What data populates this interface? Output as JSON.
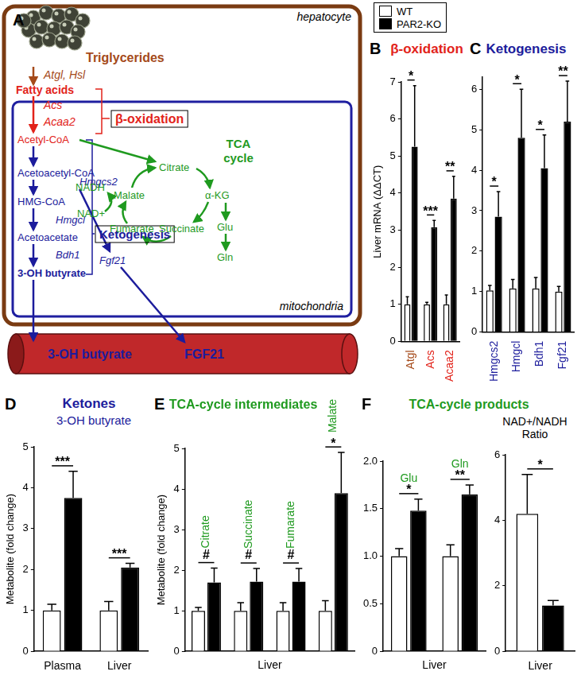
{
  "diagram": {
    "panel": "A",
    "texts": {
      "cell": "hepatocyte",
      "triglycerides": "Triglycerides",
      "lipases": "Atgl, Hsl",
      "fatty_acids": "Fatty acids",
      "acs": "Acs",
      "acaa2": "Acaa2",
      "beta_oxidation": "β-oxidation",
      "acetyl_coa": "Acetyl-CoA",
      "acetoacetyl_coa": "Acetoacetyl-CoA",
      "hmgcs2": "Hmgcs2",
      "hmg_coa": "HMG-CoA",
      "hmgcl": "Hmgcl",
      "acetoacetate": "Acetoacetate",
      "bdh1": "Bdh1",
      "butyrate": "3-OH butyrate",
      "ketogenesis": "Ketogenesis",
      "fgf21": "Fgf21",
      "organelle": "mitochondria",
      "tca": "TCA cycle",
      "citrate": "Citrate",
      "akg": "α-KG",
      "glu": "Glu",
      "gln": "Gln",
      "succinate": "Succinate",
      "fumarate": "Fumarate",
      "malate": "Malate",
      "nadh": "NADH",
      "nad": "NAD+",
      "blood_butyrate": "3-OH butyrate",
      "blood_fgf21": "FGF21"
    }
  },
  "chart_data": [
    {
      "panel": "B",
      "type": "bar",
      "title": "β-oxidation",
      "y_label": "Liver mRNA (ΔΔCT)",
      "categories": [
        "Atgl",
        "Acs",
        "Acaa2"
      ],
      "series": [
        {
          "name": "WT",
          "color": "#ffffff",
          "values": [
            1.0,
            1.0,
            1.0
          ],
          "errors": [
            0.2,
            0.05,
            0.25
          ]
        },
        {
          "name": "PAR2-KO",
          "color": "#000000",
          "values": [
            5.25,
            3.08,
            3.85
          ],
          "errors": [
            1.65,
            0.18,
            0.6
          ]
        }
      ],
      "significance": [
        "*",
        "***",
        "**"
      ],
      "ylim": [
        0,
        7
      ],
      "yticks": [
        0,
        1,
        2,
        3,
        4,
        5,
        6,
        7
      ],
      "grid": false,
      "legend": "top"
    },
    {
      "panel": "C",
      "type": "bar",
      "title": "Ketogenesis",
      "categories": [
        "Hmgcs2",
        "Hmgcl",
        "Bdh1",
        "Fgf21"
      ],
      "series": [
        {
          "name": "WT",
          "color": "#ffffff",
          "values": [
            1.03,
            1.08,
            1.08,
            1.0
          ],
          "errors": [
            0.12,
            0.22,
            0.27,
            0.13
          ]
        },
        {
          "name": "PAR2-KO",
          "color": "#000000",
          "values": [
            2.85,
            4.8,
            4.05,
            5.2
          ],
          "errors": [
            0.62,
            1.2,
            0.82,
            1.0
          ]
        }
      ],
      "significance": [
        "*",
        "*",
        "*",
        "**"
      ],
      "ylim": [
        0,
        6.3
      ],
      "yticks": [
        0,
        1,
        2,
        3,
        4,
        5,
        6
      ],
      "grid": false
    },
    {
      "panel": "D",
      "type": "bar",
      "title": "Ketones",
      "subtitle": "3-OH butyrate",
      "y_label": "Metabolite (fold change)",
      "categories": [
        "Plasma",
        "Liver"
      ],
      "series": [
        {
          "name": "WT",
          "color": "#ffffff",
          "values": [
            1.0,
            1.0
          ],
          "errors": [
            0.15,
            0.22
          ]
        },
        {
          "name": "PAR2-KO",
          "color": "#000000",
          "values": [
            3.75,
            2.05
          ],
          "errors": [
            0.65,
            0.1
          ]
        }
      ],
      "significance": [
        "***",
        "***"
      ],
      "ylim": [
        0,
        5
      ],
      "yticks": [
        0,
        1,
        2,
        3,
        4,
        5
      ],
      "grid": false
    },
    {
      "panel": "E",
      "type": "bar",
      "title": "TCA-cycle intermediates",
      "y_label": "Metabolite (fold change)",
      "x_label": "Liver",
      "categories": [
        "Citrate",
        "Succinate",
        "Fumarate",
        "Malate"
      ],
      "series": [
        {
          "name": "WT",
          "color": "#ffffff",
          "values": [
            1.0,
            1.0,
            1.0,
            1.0
          ],
          "errors": [
            0.08,
            0.2,
            0.2,
            0.25
          ]
        },
        {
          "name": "PAR2-KO",
          "color": "#000000",
          "values": [
            1.7,
            1.72,
            1.72,
            3.9
          ],
          "errors": [
            0.35,
            0.32,
            0.32,
            1.0
          ]
        }
      ],
      "significance": [
        "#",
        "#",
        "#",
        "*"
      ],
      "ylim": [
        0,
        5
      ],
      "yticks": [
        0,
        1,
        2,
        3,
        4,
        5
      ],
      "grid": false
    },
    {
      "panel": "F",
      "type": "bar",
      "title": "TCA-cycle products",
      "x_label": "Liver",
      "categories": [
        "Glu",
        "Gln"
      ],
      "series": [
        {
          "name": "WT",
          "color": "#ffffff",
          "values": [
            1.0,
            1.0
          ],
          "errors": [
            0.08,
            0.12
          ]
        },
        {
          "name": "PAR2-KO",
          "color": "#000000",
          "values": [
            1.48,
            1.65
          ],
          "errors": [
            0.12,
            0.1
          ]
        }
      ],
      "significance": [
        "*",
        "**"
      ],
      "ylim": [
        0,
        2
      ],
      "yticks": [
        0,
        0.5,
        {
          "value": 1,
          "label": "1.0"
        },
        1.5,
        {
          "value": 2,
          "label": "2.0"
        }
      ],
      "grid": false
    },
    {
      "type": "bar",
      "title": "NAD+/NADH Ratio",
      "categories": [
        "Liver"
      ],
      "series": [
        {
          "name": "WT",
          "color": "#ffffff",
          "values": [
            4.2
          ],
          "errors": [
            1.2
          ]
        },
        {
          "name": "PAR2-KO",
          "color": "#000000",
          "values": [
            1.4
          ],
          "errors": [
            0.15
          ]
        }
      ],
      "significance": [
        "*"
      ],
      "ylim": [
        0,
        6
      ],
      "yticks": [
        0,
        2,
        4,
        6
      ],
      "grid": false
    }
  ]
}
